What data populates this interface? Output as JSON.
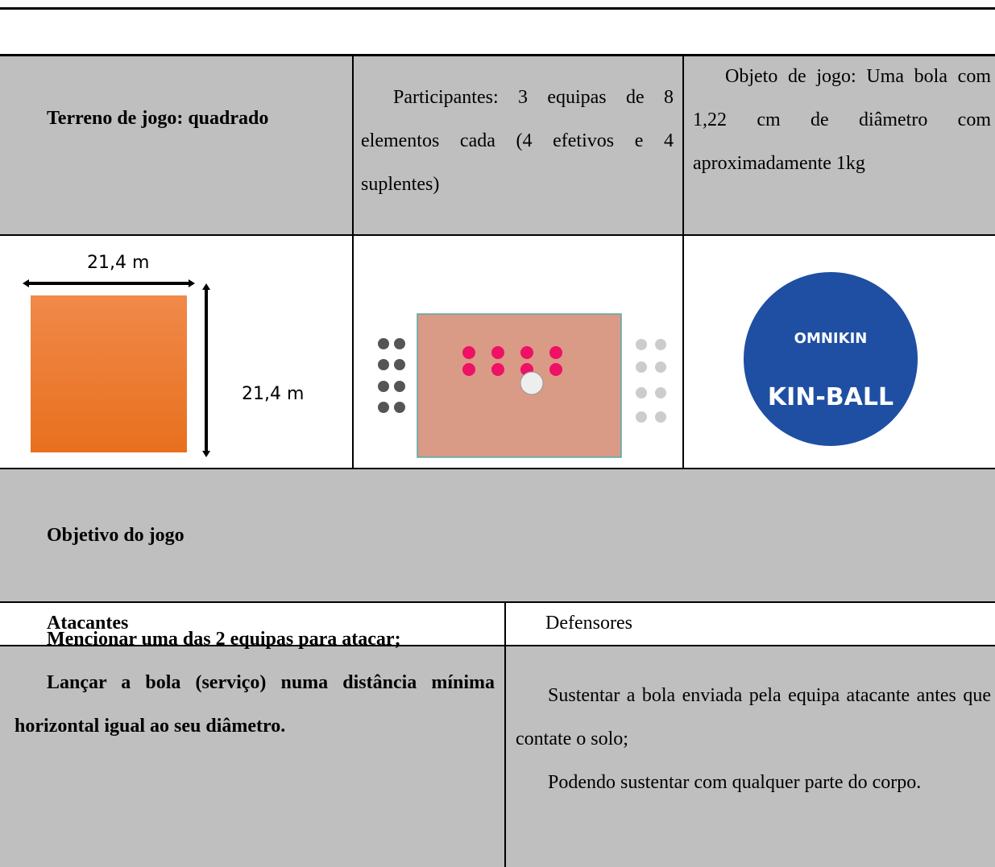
{
  "table": {
    "rows": [
      [
        "Terreno de jogo: quadrado",
        "Participantes: 3 equipas de 8 elementos cada (4 efetivos e 4 suplentes)",
        "Objeto de jogo: Uma bola com 1,22 cm de diâmetro com aproximadamente 1kg"
      ],
      {
        "court_width": "21,4 m",
        "court_length": "21,4 m",
        "ball_brand": "OMNIKIN",
        "ball_name": "KIN-BALL"
      },
      [
        "Objetivo do jogo"
      ],
      [
        "Atacantes",
        "Defensores"
      ],
      [
        [
          "Mencionar uma das 2 equipas para atacar;",
          "Lançar a bola (serviço) numa distância mínima horizontal igual ao seu diâmetro."
        ],
        [
          "Sustentar a bola enviada pela equipa atacante antes que contate o solo;",
          "Podendo sustentar com qualquer parte do corpo."
        ]
      ]
    ]
  }
}
